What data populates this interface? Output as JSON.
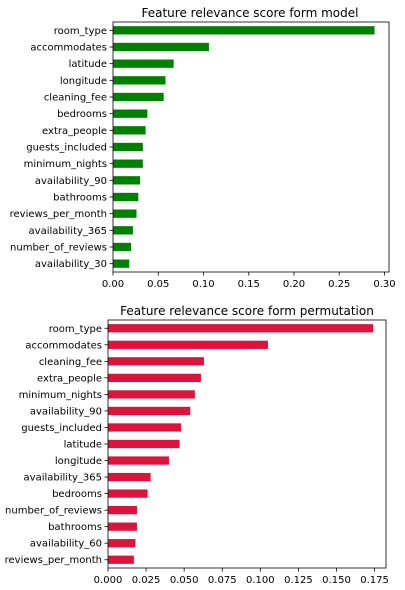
{
  "colors": {
    "chart1_bar": "#008000",
    "chart2_bar": "#dc143c"
  },
  "chart_data": [
    {
      "type": "bar",
      "orientation": "horizontal",
      "title": "Feature relevance score form model",
      "xlabel": "",
      "ylabel": "",
      "xlim": [
        0,
        0.305
      ],
      "xticks": [
        0.0,
        0.05,
        0.1,
        0.15,
        0.2,
        0.25,
        0.3
      ],
      "xtick_labels": [
        "0.00",
        "0.05",
        "0.10",
        "0.15",
        "0.20",
        "0.25",
        "0.30"
      ],
      "grid": false,
      "categories": [
        "room_type",
        "accommodates",
        "latitude",
        "longitude",
        "cleaning_fee",
        "bedrooms",
        "extra_people",
        "guests_included",
        "minimum_nights",
        "availability_90",
        "bathrooms",
        "reviews_per_month",
        "availability_365",
        "number_of_reviews",
        "availability_30"
      ],
      "values": [
        0.289,
        0.106,
        0.067,
        0.058,
        0.056,
        0.038,
        0.036,
        0.033,
        0.033,
        0.03,
        0.028,
        0.026,
        0.022,
        0.02,
        0.018
      ]
    },
    {
      "type": "bar",
      "orientation": "horizontal",
      "title": "Feature relevance score form permutation",
      "xlabel": "",
      "ylabel": "",
      "xlim": [
        0,
        0.1825
      ],
      "xticks": [
        0.0,
        0.025,
        0.05,
        0.075,
        0.1,
        0.125,
        0.15,
        0.175
      ],
      "xtick_labels": [
        "0.000",
        "0.025",
        "0.050",
        "0.075",
        "0.100",
        "0.125",
        "0.150",
        "0.175"
      ],
      "grid": false,
      "categories": [
        "room_type",
        "accommodates",
        "cleaning_fee",
        "extra_people",
        "minimum_nights",
        "availability_90",
        "guests_included",
        "latitude",
        "longitude",
        "availability_365",
        "bedrooms",
        "number_of_reviews",
        "bathrooms",
        "availability_60",
        "reviews_per_month"
      ],
      "values": [
        0.174,
        0.105,
        0.063,
        0.061,
        0.057,
        0.054,
        0.048,
        0.047,
        0.04,
        0.028,
        0.026,
        0.019,
        0.019,
        0.018,
        0.017
      ]
    }
  ]
}
